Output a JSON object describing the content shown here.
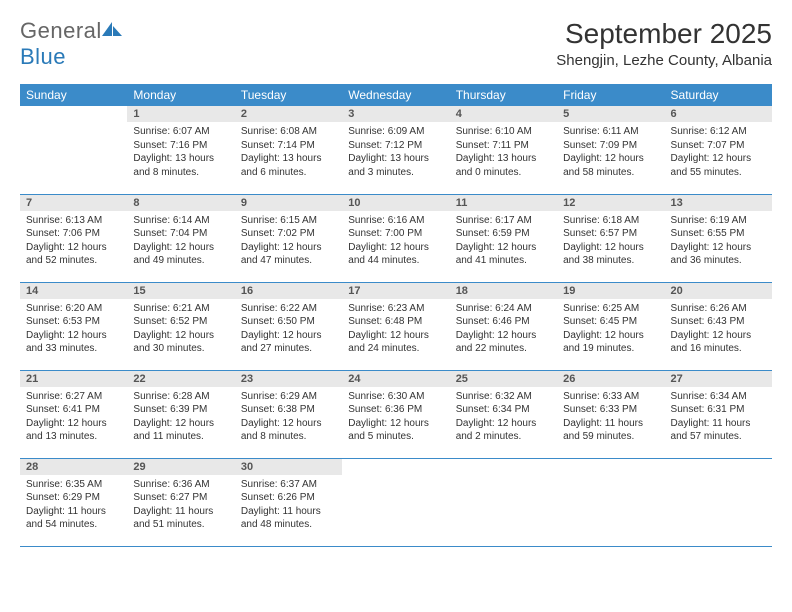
{
  "branding": {
    "word1": "General",
    "word2": "Blue",
    "word1_color": "#666666",
    "word2_color": "#2a7ab8",
    "icon_color": "#2a7ab8"
  },
  "header": {
    "title": "September 2025",
    "location": "Shengjin, Lezhe County, Albania",
    "title_fontsize": 28,
    "location_fontsize": 15
  },
  "styling": {
    "header_row_bg": "#3b8bc9",
    "header_row_fg": "#ffffff",
    "daynum_bg": "#e8e8e8",
    "row_border_color": "#3b8bc9",
    "body_font_size": 10,
    "daynum_font_size": 11
  },
  "weekdays": [
    "Sunday",
    "Monday",
    "Tuesday",
    "Wednesday",
    "Thursday",
    "Friday",
    "Saturday"
  ],
  "weeks": [
    [
      {
        "empty": true
      },
      {
        "n": "1",
        "sr": "Sunrise: 6:07 AM",
        "ss": "Sunset: 7:16 PM",
        "dl": "Daylight: 13 hours and 8 minutes."
      },
      {
        "n": "2",
        "sr": "Sunrise: 6:08 AM",
        "ss": "Sunset: 7:14 PM",
        "dl": "Daylight: 13 hours and 6 minutes."
      },
      {
        "n": "3",
        "sr": "Sunrise: 6:09 AM",
        "ss": "Sunset: 7:12 PM",
        "dl": "Daylight: 13 hours and 3 minutes."
      },
      {
        "n": "4",
        "sr": "Sunrise: 6:10 AM",
        "ss": "Sunset: 7:11 PM",
        "dl": "Daylight: 13 hours and 0 minutes."
      },
      {
        "n": "5",
        "sr": "Sunrise: 6:11 AM",
        "ss": "Sunset: 7:09 PM",
        "dl": "Daylight: 12 hours and 58 minutes."
      },
      {
        "n": "6",
        "sr": "Sunrise: 6:12 AM",
        "ss": "Sunset: 7:07 PM",
        "dl": "Daylight: 12 hours and 55 minutes."
      }
    ],
    [
      {
        "n": "7",
        "sr": "Sunrise: 6:13 AM",
        "ss": "Sunset: 7:06 PM",
        "dl": "Daylight: 12 hours and 52 minutes."
      },
      {
        "n": "8",
        "sr": "Sunrise: 6:14 AM",
        "ss": "Sunset: 7:04 PM",
        "dl": "Daylight: 12 hours and 49 minutes."
      },
      {
        "n": "9",
        "sr": "Sunrise: 6:15 AM",
        "ss": "Sunset: 7:02 PM",
        "dl": "Daylight: 12 hours and 47 minutes."
      },
      {
        "n": "10",
        "sr": "Sunrise: 6:16 AM",
        "ss": "Sunset: 7:00 PM",
        "dl": "Daylight: 12 hours and 44 minutes."
      },
      {
        "n": "11",
        "sr": "Sunrise: 6:17 AM",
        "ss": "Sunset: 6:59 PM",
        "dl": "Daylight: 12 hours and 41 minutes."
      },
      {
        "n": "12",
        "sr": "Sunrise: 6:18 AM",
        "ss": "Sunset: 6:57 PM",
        "dl": "Daylight: 12 hours and 38 minutes."
      },
      {
        "n": "13",
        "sr": "Sunrise: 6:19 AM",
        "ss": "Sunset: 6:55 PM",
        "dl": "Daylight: 12 hours and 36 minutes."
      }
    ],
    [
      {
        "n": "14",
        "sr": "Sunrise: 6:20 AM",
        "ss": "Sunset: 6:53 PM",
        "dl": "Daylight: 12 hours and 33 minutes."
      },
      {
        "n": "15",
        "sr": "Sunrise: 6:21 AM",
        "ss": "Sunset: 6:52 PM",
        "dl": "Daylight: 12 hours and 30 minutes."
      },
      {
        "n": "16",
        "sr": "Sunrise: 6:22 AM",
        "ss": "Sunset: 6:50 PM",
        "dl": "Daylight: 12 hours and 27 minutes."
      },
      {
        "n": "17",
        "sr": "Sunrise: 6:23 AM",
        "ss": "Sunset: 6:48 PM",
        "dl": "Daylight: 12 hours and 24 minutes."
      },
      {
        "n": "18",
        "sr": "Sunrise: 6:24 AM",
        "ss": "Sunset: 6:46 PM",
        "dl": "Daylight: 12 hours and 22 minutes."
      },
      {
        "n": "19",
        "sr": "Sunrise: 6:25 AM",
        "ss": "Sunset: 6:45 PM",
        "dl": "Daylight: 12 hours and 19 minutes."
      },
      {
        "n": "20",
        "sr": "Sunrise: 6:26 AM",
        "ss": "Sunset: 6:43 PM",
        "dl": "Daylight: 12 hours and 16 minutes."
      }
    ],
    [
      {
        "n": "21",
        "sr": "Sunrise: 6:27 AM",
        "ss": "Sunset: 6:41 PM",
        "dl": "Daylight: 12 hours and 13 minutes."
      },
      {
        "n": "22",
        "sr": "Sunrise: 6:28 AM",
        "ss": "Sunset: 6:39 PM",
        "dl": "Daylight: 12 hours and 11 minutes."
      },
      {
        "n": "23",
        "sr": "Sunrise: 6:29 AM",
        "ss": "Sunset: 6:38 PM",
        "dl": "Daylight: 12 hours and 8 minutes."
      },
      {
        "n": "24",
        "sr": "Sunrise: 6:30 AM",
        "ss": "Sunset: 6:36 PM",
        "dl": "Daylight: 12 hours and 5 minutes."
      },
      {
        "n": "25",
        "sr": "Sunrise: 6:32 AM",
        "ss": "Sunset: 6:34 PM",
        "dl": "Daylight: 12 hours and 2 minutes."
      },
      {
        "n": "26",
        "sr": "Sunrise: 6:33 AM",
        "ss": "Sunset: 6:33 PM",
        "dl": "Daylight: 11 hours and 59 minutes."
      },
      {
        "n": "27",
        "sr": "Sunrise: 6:34 AM",
        "ss": "Sunset: 6:31 PM",
        "dl": "Daylight: 11 hours and 57 minutes."
      }
    ],
    [
      {
        "n": "28",
        "sr": "Sunrise: 6:35 AM",
        "ss": "Sunset: 6:29 PM",
        "dl": "Daylight: 11 hours and 54 minutes."
      },
      {
        "n": "29",
        "sr": "Sunrise: 6:36 AM",
        "ss": "Sunset: 6:27 PM",
        "dl": "Daylight: 11 hours and 51 minutes."
      },
      {
        "n": "30",
        "sr": "Sunrise: 6:37 AM",
        "ss": "Sunset: 6:26 PM",
        "dl": "Daylight: 11 hours and 48 minutes."
      },
      {
        "empty": true
      },
      {
        "empty": true
      },
      {
        "empty": true
      },
      {
        "empty": true
      }
    ]
  ]
}
